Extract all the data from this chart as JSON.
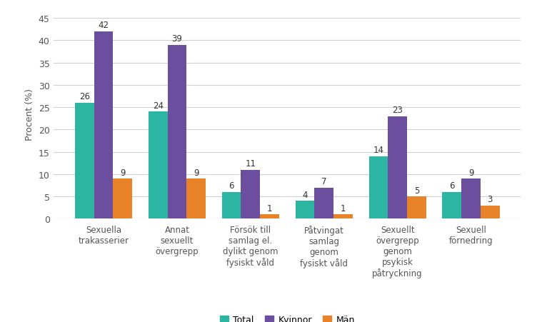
{
  "categories": [
    "Sexuella\ntrakasserier",
    "Annat\nsexuellt\növergrepp",
    "Försök till\nsamlag el.\ndylikt genom\nfysiskt våld",
    "Påtvingat\nsamlag\ngenom\nfysiskt våld",
    "Sexuellt\növergrepp\ngenom\npsykisk\npåtryckning",
    "Sexuell\nförnedring"
  ],
  "series": {
    "Total": [
      26,
      24,
      6,
      4,
      14,
      6
    ],
    "Kvinnor": [
      42,
      39,
      11,
      7,
      23,
      9
    ],
    "Män": [
      9,
      9,
      1,
      1,
      5,
      3
    ]
  },
  "colors": {
    "Total": "#2db5a3",
    "Kvinnor": "#6b4f9e",
    "Män": "#e8832a"
  },
  "ylabel": "Procent (%)",
  "ylim": [
    0,
    47
  ],
  "yticks": [
    0,
    5,
    10,
    15,
    20,
    25,
    30,
    35,
    40,
    45
  ],
  "bar_width": 0.26,
  "background_color": "#ffffff",
  "plot_bg_color": "#ffffff",
  "grid_color": "#d0d0d0",
  "label_fontsize": 8.5,
  "axis_label_fontsize": 9,
  "legend_fontsize": 9,
  "value_fontsize": 8.5
}
